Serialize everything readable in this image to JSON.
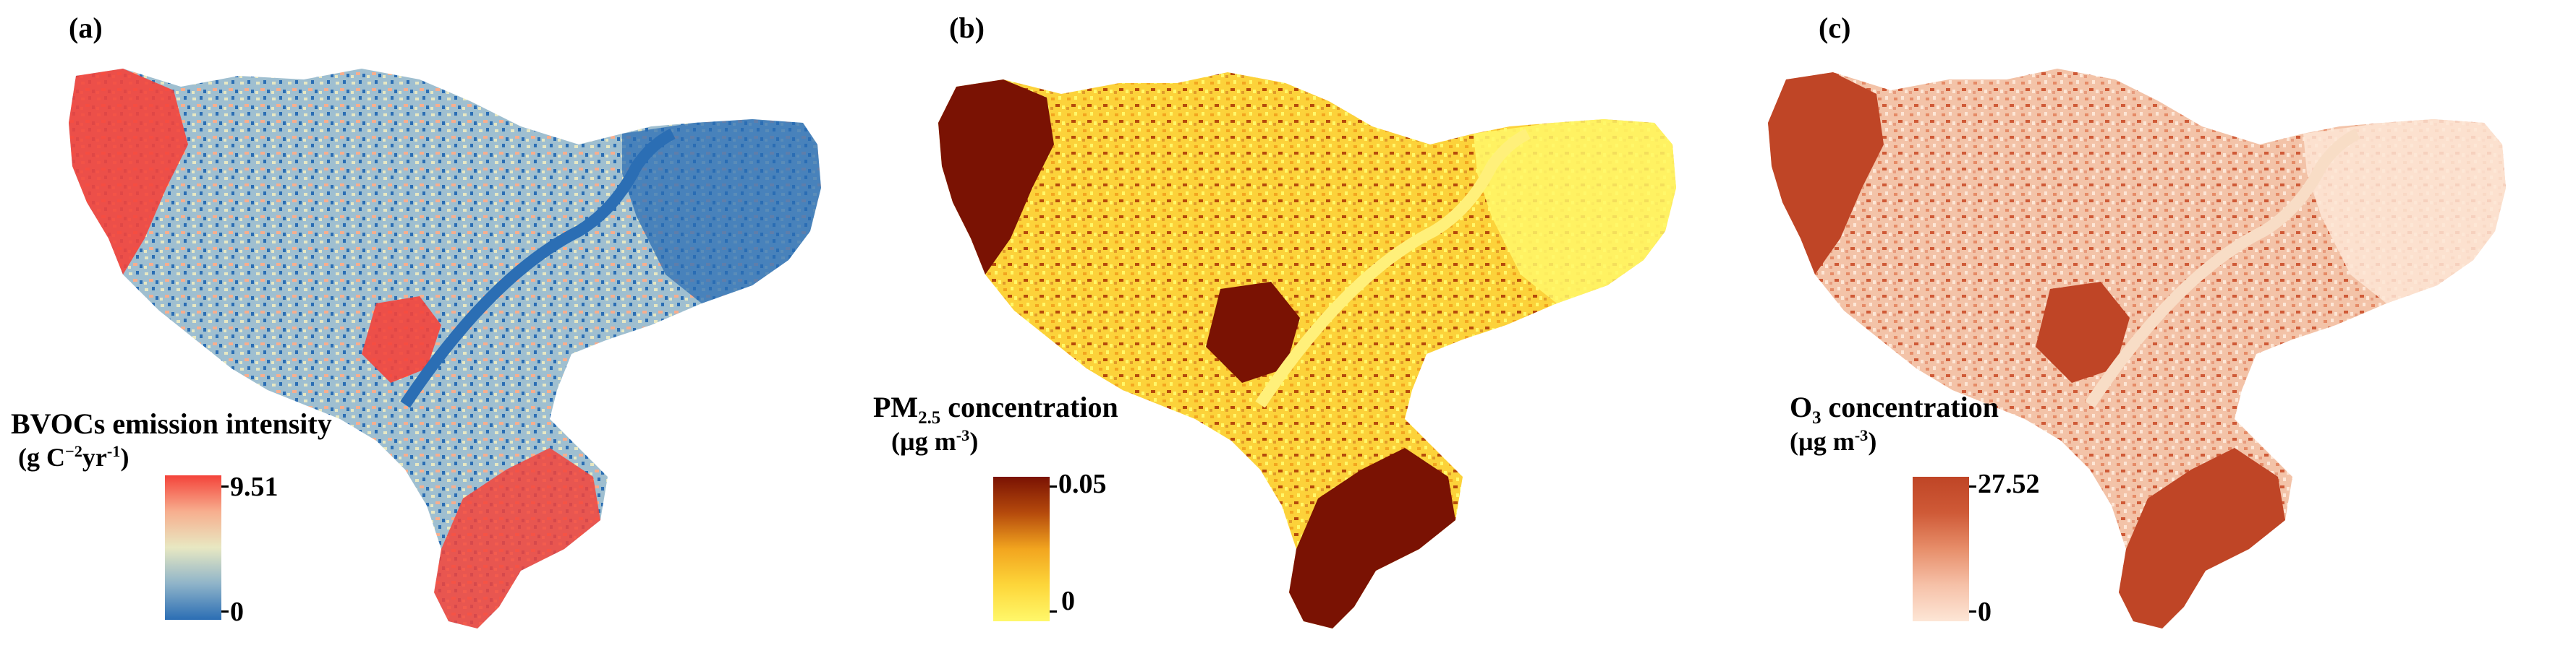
{
  "panels": [
    {
      "label": "(a)",
      "legend_title": "BVOCs emission intensity",
      "legend_unit_html": "(g C<sup>−2</sup>yr<sup>-1</sup>)",
      "max_label": "9.51",
      "min_label": "0",
      "colormap": [
        "#2b6eb4",
        "#8fb4c9",
        "#e8e8c2",
        "#f7ae8e",
        "#f4433a"
      ],
      "river_color": "#2b6eb4"
    },
    {
      "label": "(b)",
      "legend_title_html": "PM<sub>2.5</sub> concentration",
      "legend_unit_html": "(µg m<sup>-3</sup>)",
      "max_label": "0.05",
      "min_label": "0",
      "colormap": [
        "#fff86a",
        "#fdd63a",
        "#f2a51f",
        "#b54a0c",
        "#7a1203"
      ],
      "river_color": "#fff07a"
    },
    {
      "label": "(c)",
      "legend_title_html": "O<sub>3</sub> concentration",
      "legend_unit_html": "(µg m<sup>-3</sup>)",
      "max_label": "27.52",
      "min_label": "0",
      "colormap": [
        "#fde6d6",
        "#f6c1a8",
        "#e78e6a",
        "#cf5a37",
        "#bf4526"
      ],
      "river_color": "#f8ddc6"
    }
  ]
}
